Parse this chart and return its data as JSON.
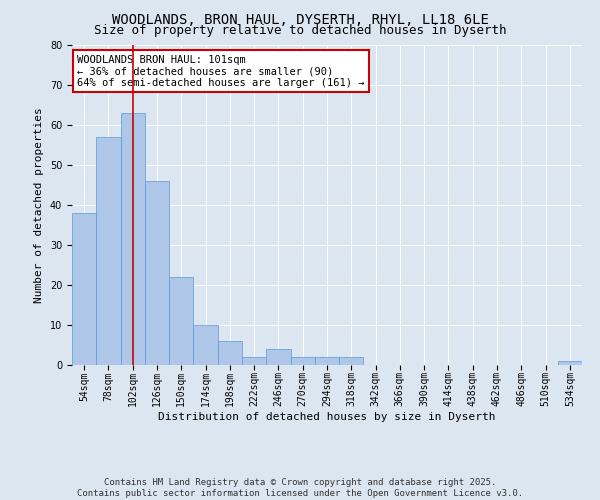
{
  "title1": "WOODLANDS, BRON HAUL, DYSERTH, RHYL, LL18 6LE",
  "title2": "Size of property relative to detached houses in Dyserth",
  "xlabel": "Distribution of detached houses by size in Dyserth",
  "ylabel": "Number of detached properties",
  "categories": [
    "54sqm",
    "78sqm",
    "102sqm",
    "126sqm",
    "150sqm",
    "174sqm",
    "198sqm",
    "222sqm",
    "246sqm",
    "270sqm",
    "294sqm",
    "318sqm",
    "342sqm",
    "366sqm",
    "390sqm",
    "414sqm",
    "438sqm",
    "462sqm",
    "486sqm",
    "510sqm",
    "534sqm"
  ],
  "values": [
    38,
    57,
    63,
    46,
    22,
    10,
    6,
    2,
    4,
    2,
    2,
    2,
    0,
    0,
    0,
    0,
    0,
    0,
    0,
    0,
    1
  ],
  "bar_color": "#aec6e8",
  "bar_edge_color": "#5b9bd5",
  "vline_x_idx": 2,
  "vline_color": "#cc0000",
  "annotation_text": "WOODLANDS BRON HAUL: 101sqm\n← 36% of detached houses are smaller (90)\n64% of semi-detached houses are larger (161) →",
  "annotation_box_color": "#ffffff",
  "annotation_box_edge": "#cc0000",
  "ylim": [
    0,
    80
  ],
  "yticks": [
    0,
    10,
    20,
    30,
    40,
    50,
    60,
    70,
    80
  ],
  "bg_color": "#dce6f1",
  "plot_bg_color": "#dce6f1",
  "footer1": "Contains HM Land Registry data © Crown copyright and database right 2025.",
  "footer2": "Contains public sector information licensed under the Open Government Licence v3.0.",
  "title_fontsize": 10,
  "title2_fontsize": 9,
  "axis_label_fontsize": 8,
  "tick_fontsize": 7,
  "footer_fontsize": 6.5,
  "annotation_fontsize": 7.5
}
